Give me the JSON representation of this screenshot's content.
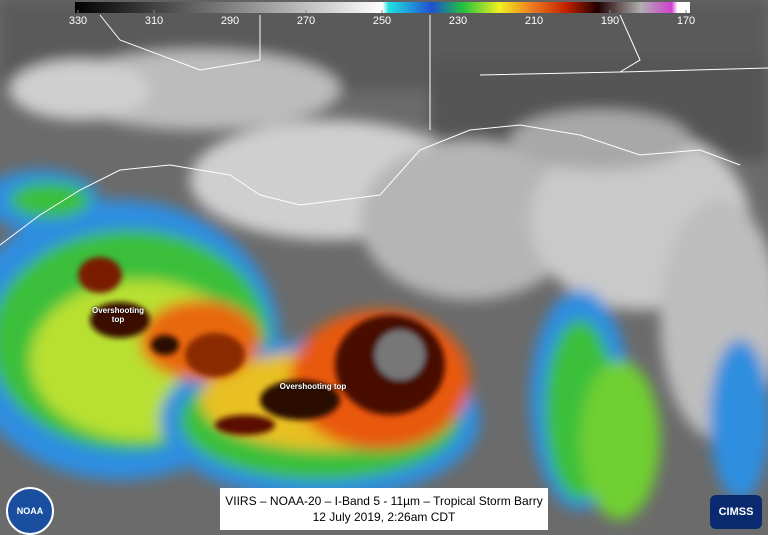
{
  "colorbar": {
    "lim": [
      330,
      170
    ],
    "ticks": [
      330,
      310,
      290,
      270,
      250,
      230,
      210,
      190,
      170
    ]
  },
  "annotations": [
    {
      "text": "Overshooting top"
    },
    {
      "text": "Overshooting top"
    }
  ],
  "caption": {
    "line1": "VIIRS – NOAA-20 – I-Band 5 - 11µm – Tropical Storm Barry",
    "line2": "12 July 2019, 2:26am CDT"
  },
  "logos": {
    "left": "NOAA",
    "right": "CIMSS"
  }
}
